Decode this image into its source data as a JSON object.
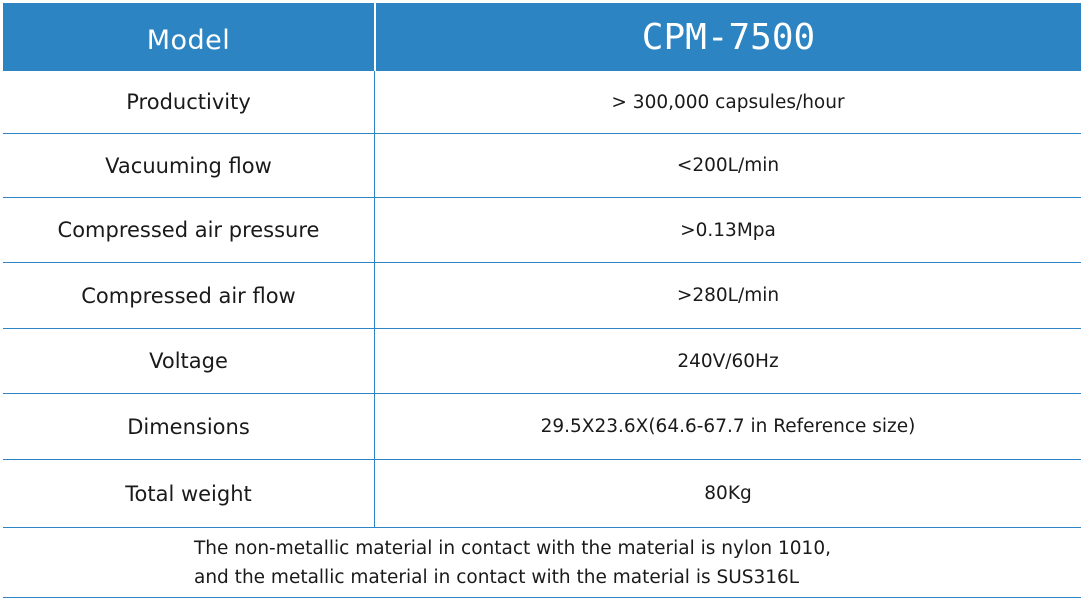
{
  "header": {
    "label": "Model",
    "value": "CPM-7500"
  },
  "rows": [
    {
      "label": "Productivity",
      "value": "> 300,000 capsules/hour"
    },
    {
      "label": "Vacuuming flow",
      "value": "<200L/min"
    },
    {
      "label": "Compressed air pressure",
      "value": ">0.13Mpa"
    },
    {
      "label": "Compressed air flow",
      "value": ">280L/min"
    },
    {
      "label": "Voltage",
      "value": "240V/60Hz"
    },
    {
      "label": "Dimensions",
      "value": "29.5X23.6X(64.6-67.7 in Reference size)"
    },
    {
      "label": "Total weight",
      "value": "80Kg"
    }
  ],
  "footer": {
    "line1": "The non-metallic material in contact with the material is nylon 1010,",
    "line2": "and the metallic material in contact with the material is SUS316L"
  },
  "colors": {
    "header_bg": "#2d84c2",
    "header_text": "#ffffff",
    "border": "#2d84c2"
  }
}
